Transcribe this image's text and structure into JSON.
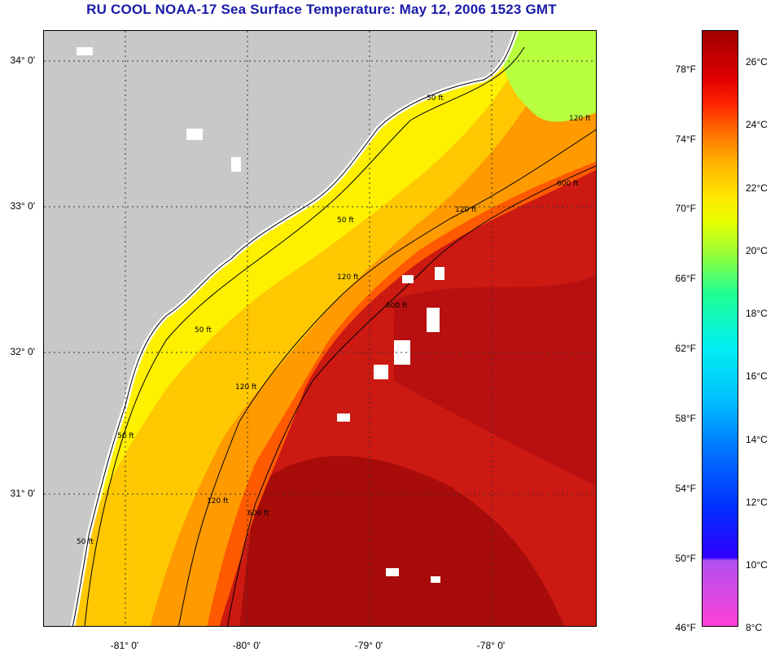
{
  "title": "RU COOL  NOAA-17  Sea Surface Temperature:  May 12, 2006 1523 GMT",
  "map": {
    "lat_labels": [
      "34° 0'",
      "33° 0'",
      "32° 0'",
      "31° 0'"
    ],
    "lon_labels": [
      "-81° 0'",
      "-80° 0'",
      "-79° 0'",
      "-78° 0'"
    ],
    "isobath_labels": [
      "50 ft",
      "50 ft",
      "50 ft",
      "50 ft",
      "50 ft",
      "120 ft",
      "120 ft",
      "120 ft",
      "120 ft",
      "120 ft",
      "600 ft",
      "600 ft",
      "600 ft"
    ]
  },
  "colorbar": {
    "fahrenheit": [
      "78°F",
      "74°F",
      "70°F",
      "66°F",
      "62°F",
      "58°F",
      "54°F",
      "50°F",
      "46°F"
    ],
    "celsius": [
      "26°C",
      "24°C",
      "22°C",
      "20°C",
      "18°C",
      "16°C",
      "14°C",
      "12°C",
      "10°C",
      "8°C"
    ]
  },
  "colors": {
    "land": "#c8c8c8",
    "cloud": "#ffffff",
    "warm": "#c81414",
    "title": "#1a1aa8"
  }
}
